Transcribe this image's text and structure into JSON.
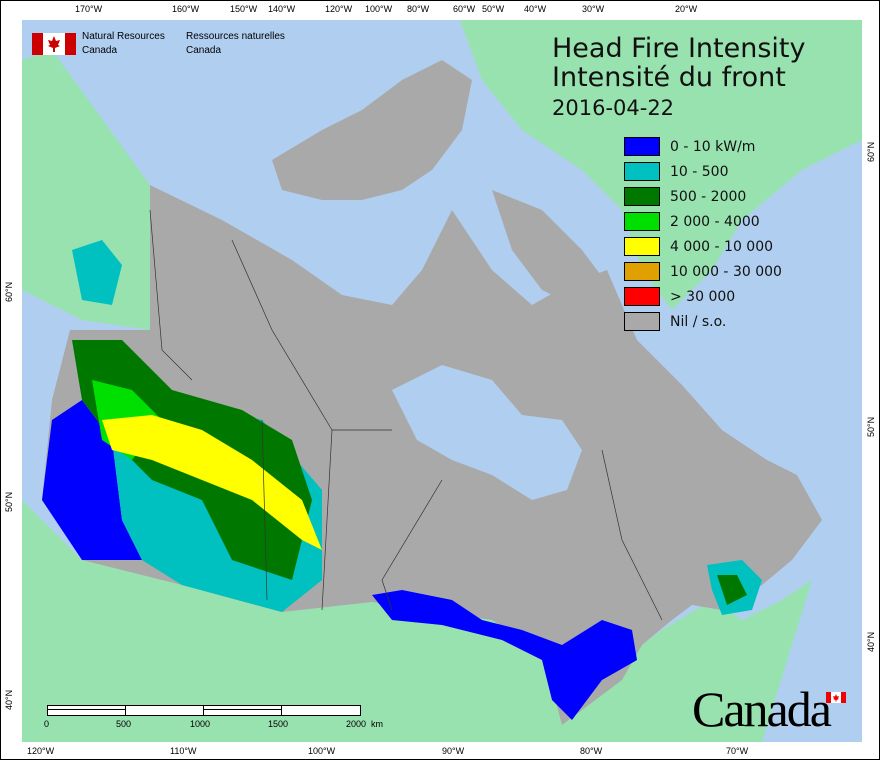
{
  "agency": {
    "en_line1": "Natural Resources",
    "en_line2": "Canada",
    "fr_line1": "Ressources naturelles",
    "fr_line2": "Canada"
  },
  "title": {
    "line1": "Head Fire Intensity",
    "line2": "Intensité du front",
    "date": "2016-04-22"
  },
  "legend": [
    {
      "label": "0 - 10 kW/m",
      "color": "#0000ff"
    },
    {
      "label": "10 - 500",
      "color": "#00c0c0"
    },
    {
      "label": "500 - 2000",
      "color": "#007800"
    },
    {
      "label": "2 000 - 4000",
      "color": "#00e000"
    },
    {
      "label": "4 000 - 10 000",
      "color": "#ffff00"
    },
    {
      "label": "10 000 - 30 000",
      "color": "#e0a000"
    },
    {
      "label": "> 30 000",
      "color": "#ff0000"
    },
    {
      "label": "Nil / s.o.",
      "color": "#a9a9a9"
    }
  ],
  "colors": {
    "ocean": "#b0cff0",
    "land_other": "#98e2b0",
    "canada": "#a9a9a9"
  },
  "top_ticks": [
    "170°W",
    "160°W",
    "150°W",
    "140°W",
    "120°W",
    "100°W",
    "80°W",
    "60°W",
    "50°W",
    "40°W",
    "30°W",
    "20°W"
  ],
  "bottom_ticks": [
    "120°W",
    "110°W",
    "100°W",
    "90°W",
    "80°W",
    "70°W"
  ],
  "left_ticks": [
    "60°N",
    "50°N",
    "40°N"
  ],
  "right_ticks": [
    "60°N",
    "50°N",
    "40°N"
  ],
  "scale": {
    "labels": [
      "0",
      "500",
      "1000",
      "1500",
      "2000  km"
    ]
  },
  "wordmark": "Canada"
}
